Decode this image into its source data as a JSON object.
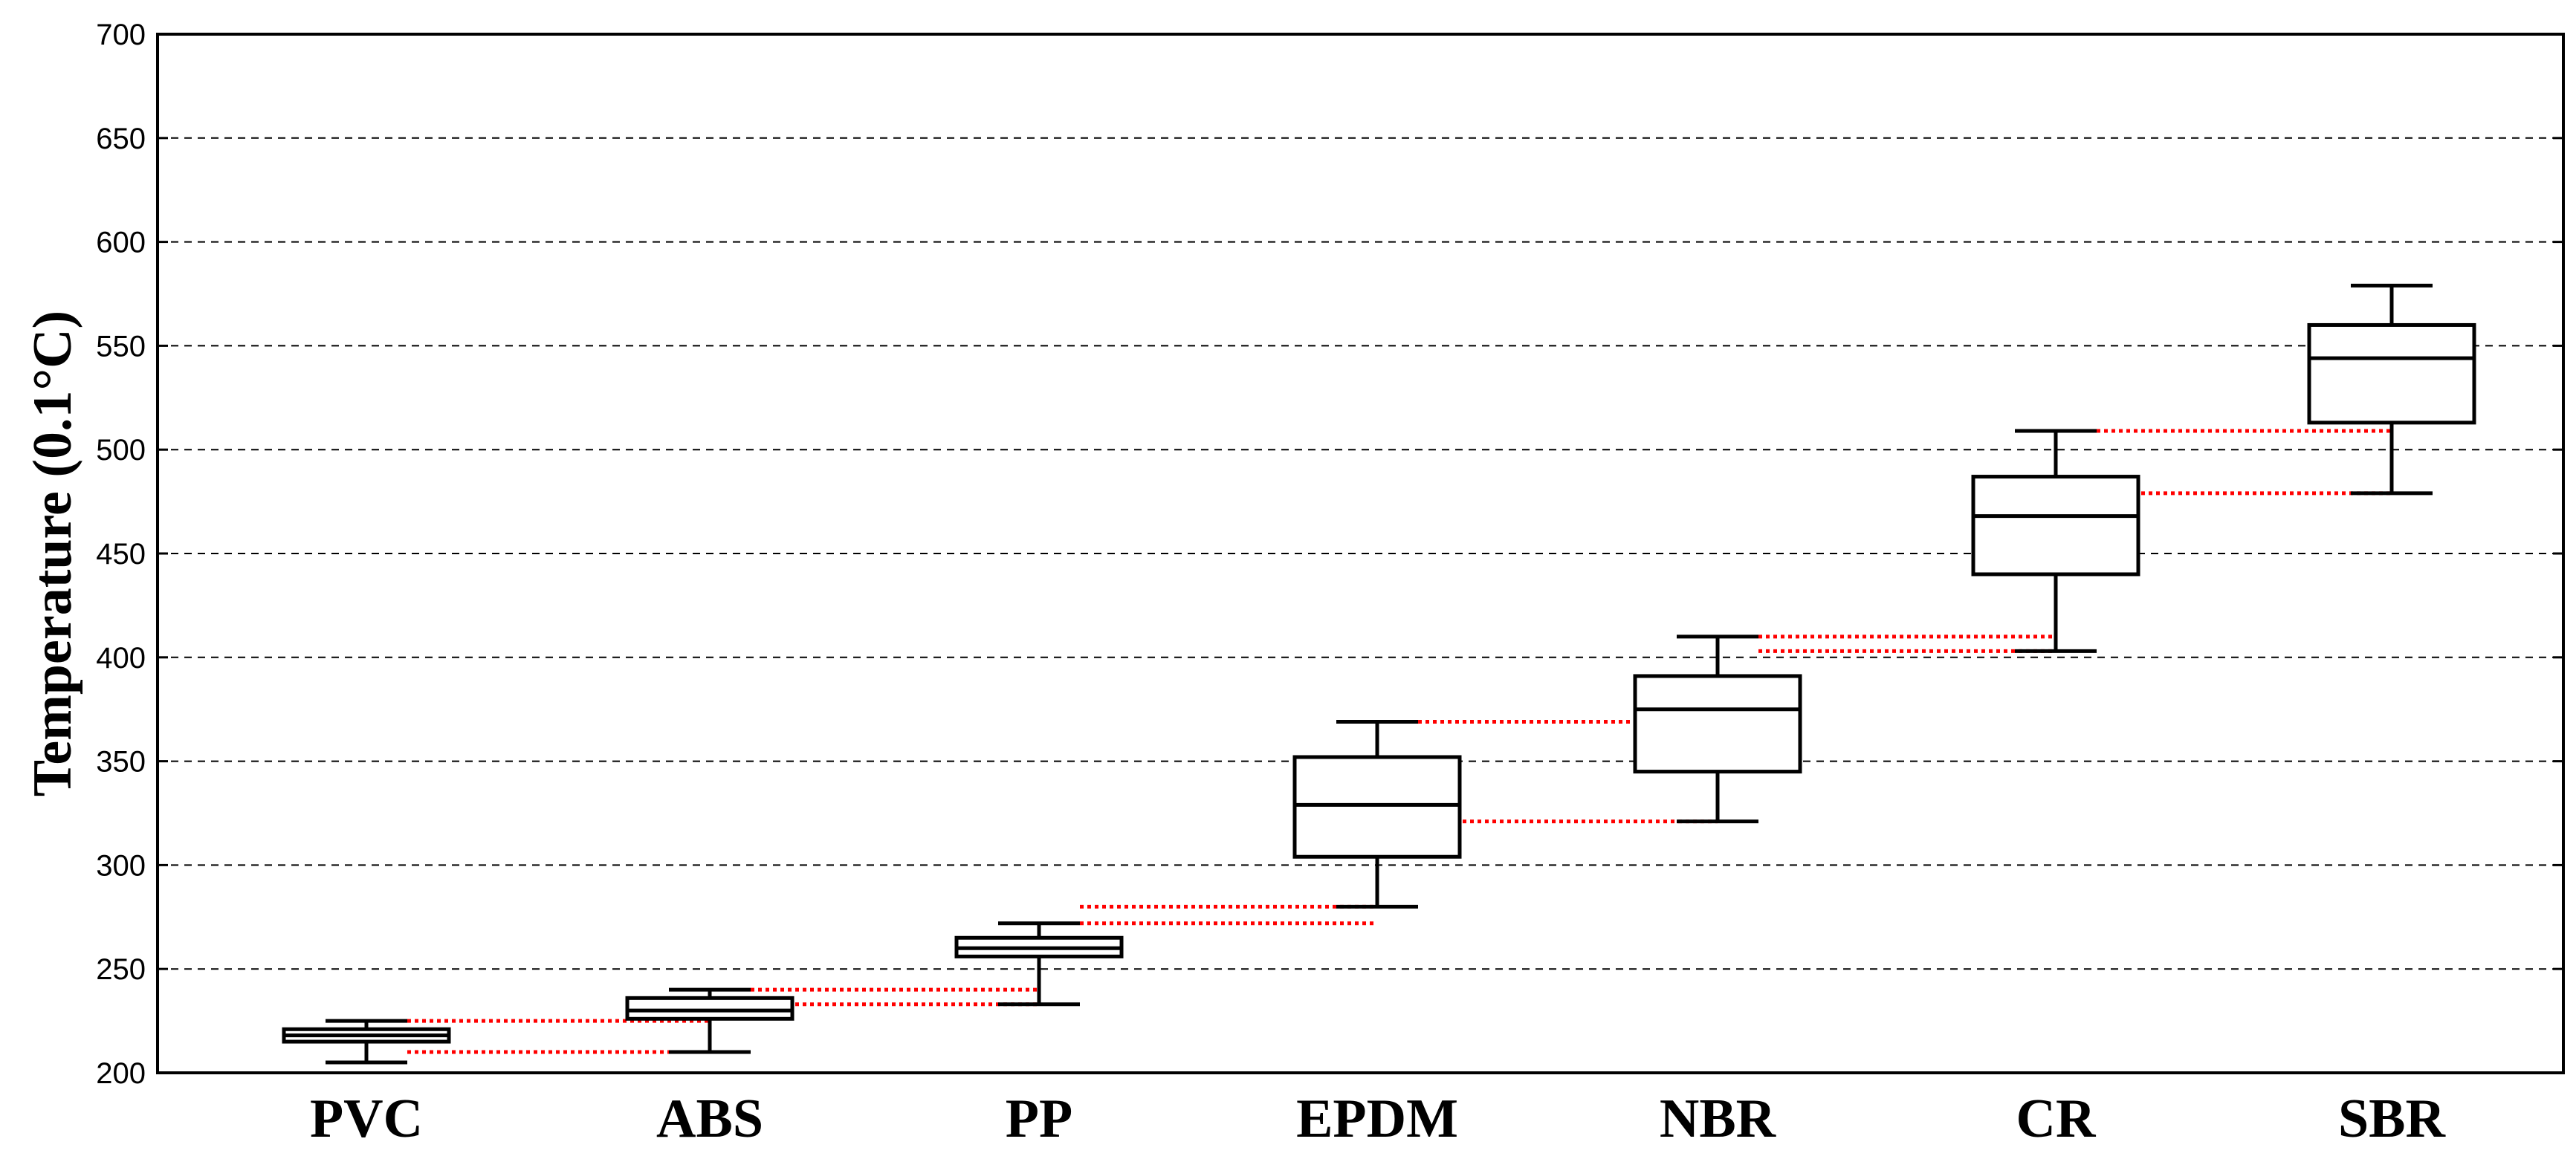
{
  "chart_data": {
    "type": "box",
    "ylabel": "Temperature (0.1°C)",
    "xlabel": "",
    "ylim": [
      200,
      700
    ],
    "yticks": [
      200,
      250,
      300,
      350,
      400,
      450,
      500,
      550,
      600,
      650,
      700
    ],
    "grid": "horizontal dashed",
    "categories": [
      "PVC",
      "ABS",
      "PP",
      "EPDM",
      "NBR",
      "CR",
      "SBR"
    ],
    "boxes": [
      {
        "category": "PVC",
        "whisker_low": 205,
        "q1": 215,
        "median": 218,
        "q3": 221,
        "whisker_high": 225
      },
      {
        "category": "ABS",
        "whisker_low": 210,
        "q1": 226,
        "median": 230,
        "q3": 236,
        "whisker_high": 240
      },
      {
        "category": "PP",
        "whisker_low": 233,
        "q1": 256,
        "median": 260,
        "q3": 265,
        "whisker_high": 272
      },
      {
        "category": "EPDM",
        "whisker_low": 280,
        "q1": 304,
        "median": 329,
        "q3": 352,
        "whisker_high": 369
      },
      {
        "category": "NBR",
        "whisker_low": 321,
        "q1": 345,
        "median": 375,
        "q3": 391,
        "whisker_high": 410
      },
      {
        "category": "CR",
        "whisker_low": 403,
        "q1": 440,
        "median": 468,
        "q3": 487,
        "whisker_high": 509
      },
      {
        "category": "SBR",
        "whisker_low": 479,
        "q1": 513,
        "median": 544,
        "q3": 560,
        "whisker_high": 579
      }
    ],
    "connector_color": "#ff0000",
    "box_color": "#000000"
  }
}
